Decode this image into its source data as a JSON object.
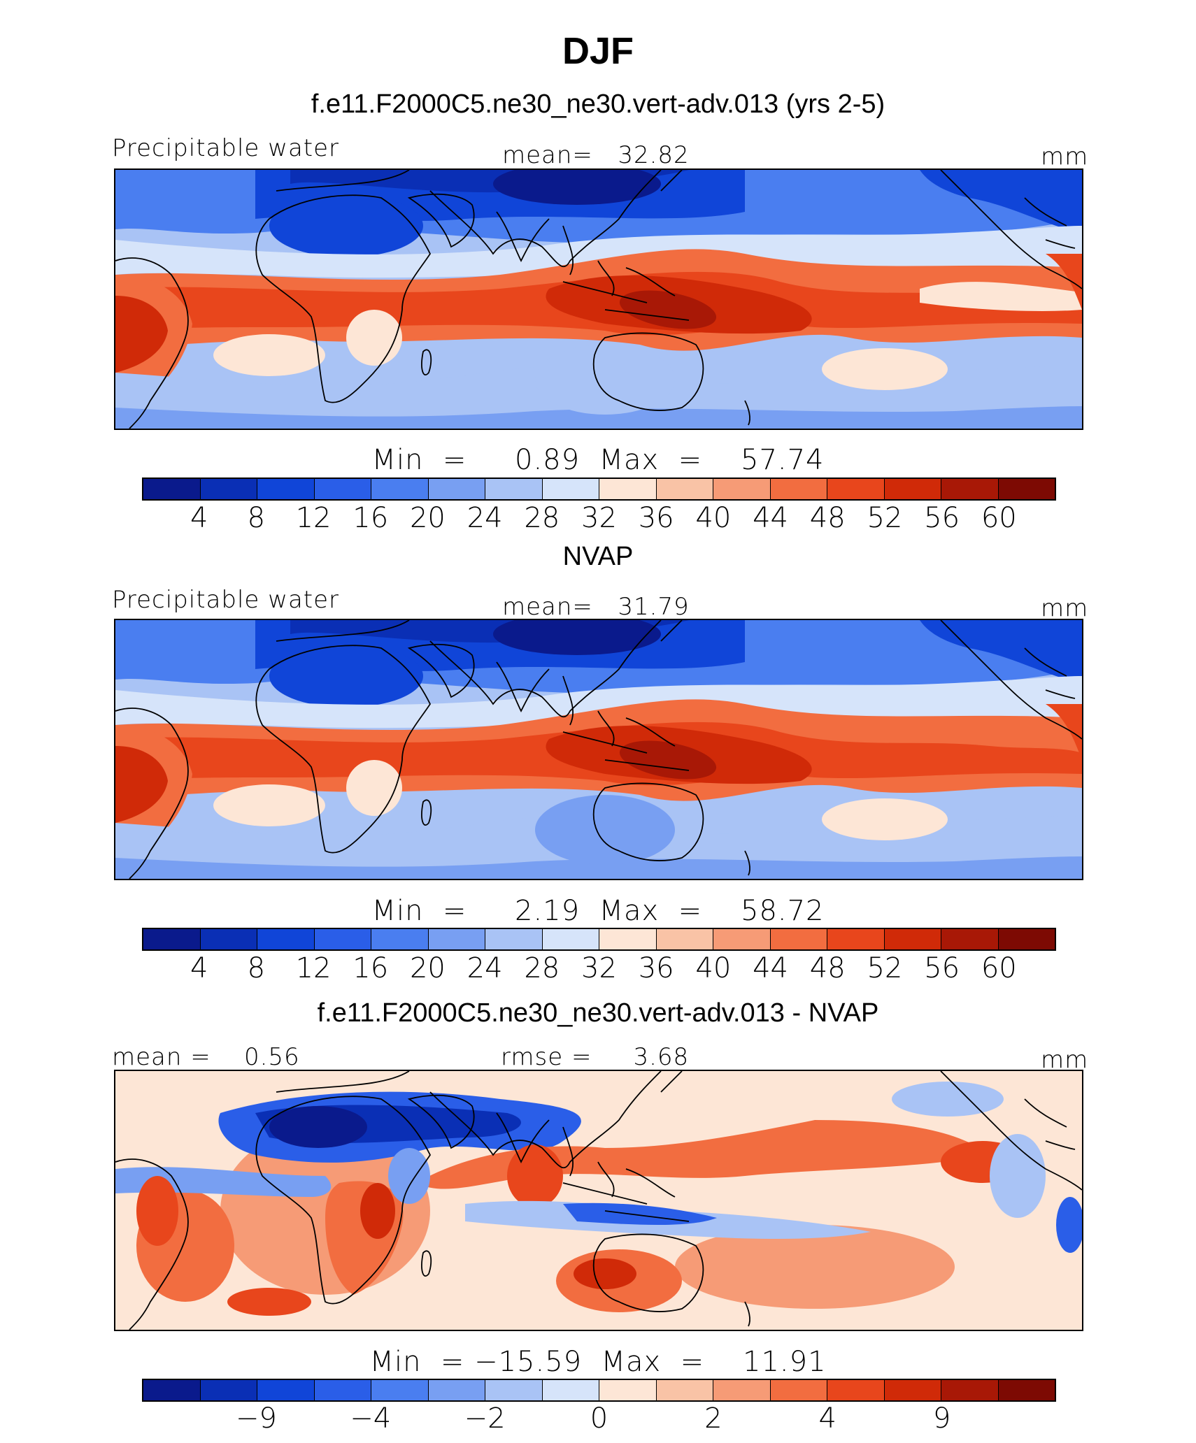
{
  "title": "DJF",
  "palette": [
    "#0a1a8c",
    "#0a2fb5",
    "#1045d8",
    "#2a5ee8",
    "#4a7ef0",
    "#789ff2",
    "#a9c3f5",
    "#d6e4fa",
    "#fde6d6",
    "#f9c3a6",
    "#f69b76",
    "#f26d40",
    "#e8461c",
    "#d02a08",
    "#a81806",
    "#7d0a03"
  ],
  "panels": [
    {
      "title": "f.e11.F2000C5.ne30_ne30.vert-adv.013 (yrs 2-5)",
      "left_label": "Precipitable water",
      "center_label": "mean=   32.82",
      "right_label": "mm",
      "stats": "Min  =     0.89  Max  =    57.74",
      "colorbar_ticks": [
        "4",
        "8",
        "12",
        "16",
        "20",
        "24",
        "28",
        "32",
        "36",
        "40",
        "44",
        "48",
        "52",
        "56",
        "60"
      ],
      "variant": "model"
    },
    {
      "title": "NVAP",
      "left_label": "Precipitable water",
      "center_label": "mean=   31.79",
      "right_label": "mm",
      "stats": "Min  =     2.19  Max  =    58.72",
      "colorbar_ticks": [
        "4",
        "8",
        "12",
        "16",
        "20",
        "24",
        "28",
        "32",
        "36",
        "40",
        "44",
        "48",
        "52",
        "56",
        "60"
      ],
      "variant": "obs"
    },
    {
      "title": "f.e11.F2000C5.ne30_ne30.vert-adv.013 - NVAP",
      "left_label": "mean =    0.56",
      "center_label": "rmse =     3.68",
      "right_label": "mm",
      "stats": "Min  = −15.59  Max  =    11.91",
      "colorbar_ticks": [
        "−9",
        "−4",
        "−2",
        "0",
        "2",
        "4",
        "9"
      ],
      "variant": "diff"
    }
  ]
}
